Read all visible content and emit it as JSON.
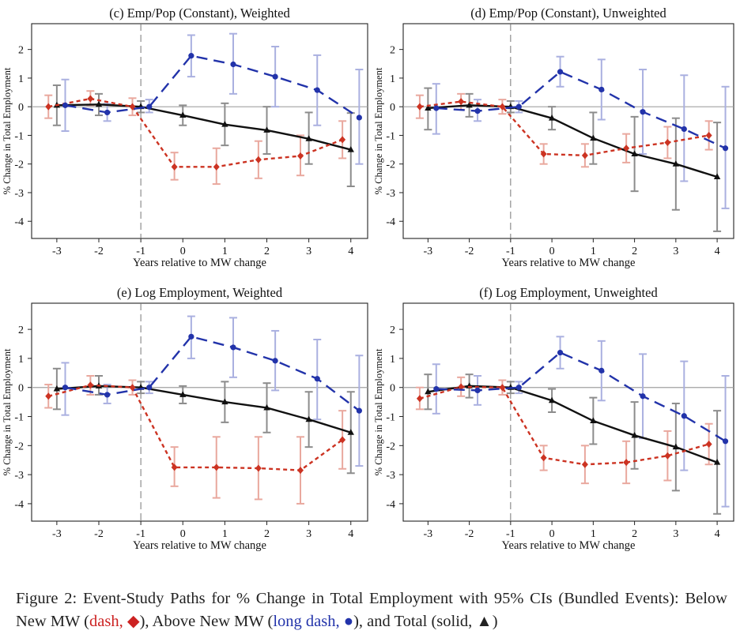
{
  "x_label": "Years relative to MW change",
  "y_label": "% Change in Total Employment",
  "chart_data": [
    {
      "type": "line",
      "title": "(c) Emp/Pop (Constant), Weighted",
      "xlabel": "Years relative to MW change",
      "ylabel": "% Change in Total Employment",
      "xlim": [
        -3.6,
        4.4
      ],
      "ylim": [
        -4.6,
        2.9
      ],
      "x_ticks": [
        "-3",
        "-2",
        "-1",
        "0",
        "1",
        "2",
        "3",
        "4"
      ],
      "y_ticks": [
        "2",
        "1",
        "0",
        "-1",
        "-2",
        "-3",
        "-4"
      ],
      "series": [
        {
          "name": "Below New MW",
          "style": "dash",
          "marker": "diamond",
          "color": "#cc3322",
          "x": [
            -3.2,
            -2.2,
            -1.2,
            -0.2,
            0.8,
            1.8,
            2.8,
            3.8
          ],
          "y": [
            0.0,
            0.28,
            0.0,
            -2.1,
            -2.1,
            -1.85,
            -1.72,
            -1.15
          ],
          "ci_low": [
            -0.4,
            0.05,
            -0.3,
            -2.55,
            -2.7,
            -2.5,
            -2.4,
            -1.8
          ],
          "ci_high": [
            0.4,
            0.55,
            0.3,
            -1.6,
            -1.45,
            -1.2,
            -1.0,
            -0.5
          ]
        },
        {
          "name": "Above New MW",
          "style": "long dash",
          "marker": "circle",
          "color": "#2233aa",
          "x": [
            -2.8,
            -1.8,
            -0.8,
            0.2,
            1.2,
            2.2,
            3.2,
            4.2
          ],
          "y": [
            0.05,
            -0.2,
            0.0,
            1.78,
            1.48,
            1.05,
            0.58,
            -0.38
          ],
          "ci_low": [
            -0.85,
            -0.5,
            -0.2,
            1.05,
            0.45,
            0.0,
            -0.65,
            -2.0
          ],
          "ci_high": [
            0.95,
            0.1,
            0.25,
            2.5,
            2.55,
            2.1,
            1.8,
            1.3
          ]
        },
        {
          "name": "Total",
          "style": "solid",
          "marker": "triangle",
          "color": "#111111",
          "x": [
            -3,
            -2,
            -1,
            0,
            1,
            2,
            3,
            4
          ],
          "y": [
            0.05,
            0.08,
            0.0,
            -0.3,
            -0.62,
            -0.82,
            -1.12,
            -1.5
          ],
          "ci_low": [
            -0.65,
            -0.3,
            -0.2,
            -0.65,
            -1.35,
            -1.65,
            -2.0,
            -2.78
          ],
          "ci_high": [
            0.75,
            0.45,
            0.2,
            0.05,
            0.12,
            0.0,
            -0.2,
            -0.22
          ]
        }
      ]
    },
    {
      "type": "line",
      "title": "(d) Emp/Pop (Constant), Unweighted",
      "xlabel": "Years relative to MW change",
      "ylabel": "% Change in Total Employment",
      "xlim": [
        -3.6,
        4.4
      ],
      "ylim": [
        -4.6,
        2.9
      ],
      "x_ticks": [
        "-3",
        "-2",
        "-1",
        "0",
        "1",
        "2",
        "3",
        "4"
      ],
      "y_ticks": [
        "2",
        "1",
        "0",
        "-1",
        "-2",
        "-3",
        "-4"
      ],
      "series": [
        {
          "name": "Below New MW",
          "style": "dash",
          "marker": "diamond",
          "color": "#cc3322",
          "x": [
            -3.2,
            -2.2,
            -1.2,
            -0.2,
            0.8,
            1.8,
            2.8,
            3.8
          ],
          "y": [
            0.0,
            0.18,
            0.0,
            -1.65,
            -1.7,
            -1.45,
            -1.25,
            -1.0
          ],
          "ci_low": [
            -0.4,
            -0.1,
            -0.25,
            -2.0,
            -2.1,
            -1.95,
            -1.8,
            -1.5
          ],
          "ci_high": [
            0.4,
            0.45,
            0.25,
            -1.3,
            -1.3,
            -0.95,
            -0.7,
            -0.5
          ]
        },
        {
          "name": "Above New MW",
          "style": "long dash",
          "marker": "circle",
          "color": "#2233aa",
          "x": [
            -2.8,
            -1.8,
            -0.8,
            0.2,
            1.2,
            2.2,
            3.2,
            4.2
          ],
          "y": [
            -0.05,
            -0.15,
            0.0,
            1.22,
            0.6,
            -0.18,
            -0.78,
            -1.45
          ],
          "ci_low": [
            -0.95,
            -0.5,
            -0.2,
            0.7,
            -0.45,
            -1.65,
            -2.6,
            -3.55
          ],
          "ci_high": [
            0.8,
            0.25,
            0.2,
            1.75,
            1.65,
            1.3,
            1.1,
            0.7
          ]
        },
        {
          "name": "Total",
          "style": "solid",
          "marker": "triangle",
          "color": "#111111",
          "x": [
            -3,
            -2,
            -1,
            0,
            1,
            2,
            3,
            4
          ],
          "y": [
            -0.05,
            0.05,
            0.0,
            -0.4,
            -1.1,
            -1.65,
            -2.0,
            -2.45
          ],
          "ci_low": [
            -0.8,
            -0.35,
            -0.2,
            -0.8,
            -2.0,
            -2.95,
            -3.6,
            -4.35
          ],
          "ci_high": [
            0.65,
            0.45,
            0.2,
            0.0,
            -0.2,
            -0.35,
            -0.4,
            -0.55
          ]
        }
      ]
    },
    {
      "type": "line",
      "title": "(e) Log Employment, Weighted",
      "xlabel": "Years relative to MW change",
      "ylabel": "% Change in Total Employment",
      "xlim": [
        -3.6,
        4.4
      ],
      "ylim": [
        -4.6,
        2.9
      ],
      "x_ticks": [
        "-3",
        "-2",
        "-1",
        "0",
        "1",
        "2",
        "3",
        "4"
      ],
      "y_ticks": [
        "2",
        "1",
        "0",
        "-1",
        "-2",
        "-3",
        "-4"
      ],
      "series": [
        {
          "name": "Below New MW",
          "style": "dash",
          "marker": "diamond",
          "color": "#cc3322",
          "x": [
            -3.2,
            -2.2,
            -1.2,
            -0.2,
            0.8,
            1.8,
            2.8,
            3.8
          ],
          "y": [
            -0.3,
            0.08,
            0.0,
            -2.75,
            -2.75,
            -2.78,
            -2.85,
            -1.8
          ],
          "ci_low": [
            -0.7,
            -0.25,
            -0.25,
            -3.4,
            -3.8,
            -3.85,
            -4.0,
            -2.8
          ],
          "ci_high": [
            0.1,
            0.4,
            0.25,
            -2.05,
            -1.7,
            -1.7,
            -1.7,
            -0.8
          ]
        },
        {
          "name": "Above New MW",
          "style": "long dash",
          "marker": "circle",
          "color": "#2233aa",
          "x": [
            -2.8,
            -1.8,
            -0.8,
            0.2,
            1.2,
            2.2,
            3.2,
            4.2
          ],
          "y": [
            0.0,
            -0.25,
            0.0,
            1.75,
            1.38,
            0.92,
            0.3,
            -0.8
          ],
          "ci_low": [
            -0.95,
            -0.55,
            -0.2,
            1.0,
            0.35,
            -0.1,
            -1.1,
            -2.7
          ],
          "ci_high": [
            0.85,
            0.1,
            0.2,
            2.45,
            2.4,
            1.95,
            1.65,
            1.1
          ]
        },
        {
          "name": "Total",
          "style": "solid",
          "marker": "triangle",
          "color": "#111111",
          "x": [
            -3,
            -2,
            -1,
            0,
            1,
            2,
            3,
            4
          ],
          "y": [
            -0.05,
            0.05,
            0.0,
            -0.25,
            -0.5,
            -0.7,
            -1.1,
            -1.55
          ],
          "ci_low": [
            -0.75,
            -0.25,
            -0.2,
            -0.55,
            -1.2,
            -1.55,
            -2.05,
            -2.95
          ],
          "ci_high": [
            0.65,
            0.4,
            0.2,
            0.05,
            0.2,
            0.15,
            -0.15,
            -0.15
          ]
        }
      ]
    },
    {
      "type": "line",
      "title": "(f) Log Employment, Unweighted",
      "xlabel": "Years relative to MW change",
      "ylabel": "% Change in Total Employment",
      "xlim": [
        -3.6,
        4.4
      ],
      "ylim": [
        -4.6,
        2.9
      ],
      "x_ticks": [
        "-3",
        "-2",
        "-1",
        "0",
        "1",
        "2",
        "3",
        "4"
      ],
      "y_ticks": [
        "2",
        "1",
        "0",
        "-1",
        "-2",
        "-3",
        "-4"
      ],
      "series": [
        {
          "name": "Below New MW",
          "style": "dash",
          "marker": "diamond",
          "color": "#cc3322",
          "x": [
            -3.2,
            -2.2,
            -1.2,
            -0.2,
            0.8,
            1.8,
            2.8,
            3.8
          ],
          "y": [
            -0.38,
            0.02,
            0.0,
            -2.42,
            -2.65,
            -2.58,
            -2.35,
            -1.95
          ],
          "ci_low": [
            -0.75,
            -0.3,
            -0.25,
            -2.85,
            -3.3,
            -3.3,
            -3.2,
            -2.65
          ],
          "ci_high": [
            0.0,
            0.35,
            0.25,
            -2.0,
            -2.0,
            -1.85,
            -1.5,
            -1.25
          ]
        },
        {
          "name": "Above New MW",
          "style": "long dash",
          "marker": "circle",
          "color": "#2233aa",
          "x": [
            -2.8,
            -1.8,
            -0.8,
            0.2,
            1.2,
            2.2,
            3.2,
            4.2
          ],
          "y": [
            -0.05,
            -0.1,
            0.0,
            1.2,
            0.58,
            -0.3,
            -0.98,
            -1.85
          ],
          "ci_low": [
            -0.9,
            -0.6,
            -0.2,
            0.65,
            -0.45,
            -1.75,
            -2.85,
            -4.1
          ],
          "ci_high": [
            0.8,
            0.4,
            0.2,
            1.75,
            1.6,
            1.15,
            0.9,
            0.4
          ]
        },
        {
          "name": "Total",
          "style": "solid",
          "marker": "triangle",
          "color": "#111111",
          "x": [
            -3,
            -2,
            -1,
            0,
            1,
            2,
            3,
            4
          ],
          "y": [
            -0.15,
            0.05,
            0.0,
            -0.45,
            -1.15,
            -1.65,
            -2.05,
            -2.58
          ],
          "ci_low": [
            -0.75,
            -0.35,
            -0.2,
            -0.85,
            -1.95,
            -2.8,
            -3.55,
            -4.35
          ],
          "ci_high": [
            0.45,
            0.45,
            0.2,
            -0.05,
            -0.35,
            -0.5,
            -0.55,
            -0.8
          ]
        }
      ]
    }
  ],
  "caption": {
    "prefix": "Figure 2: Event-Study Paths for % Change in Total Employment with 95% CIs (Bundled Events): Below New MW (",
    "below_style": "dash, ◆",
    "mid1": "), Above New MW (",
    "above_style": "long dash, ●",
    "mid2": "), and Total (solid, ▲)"
  }
}
